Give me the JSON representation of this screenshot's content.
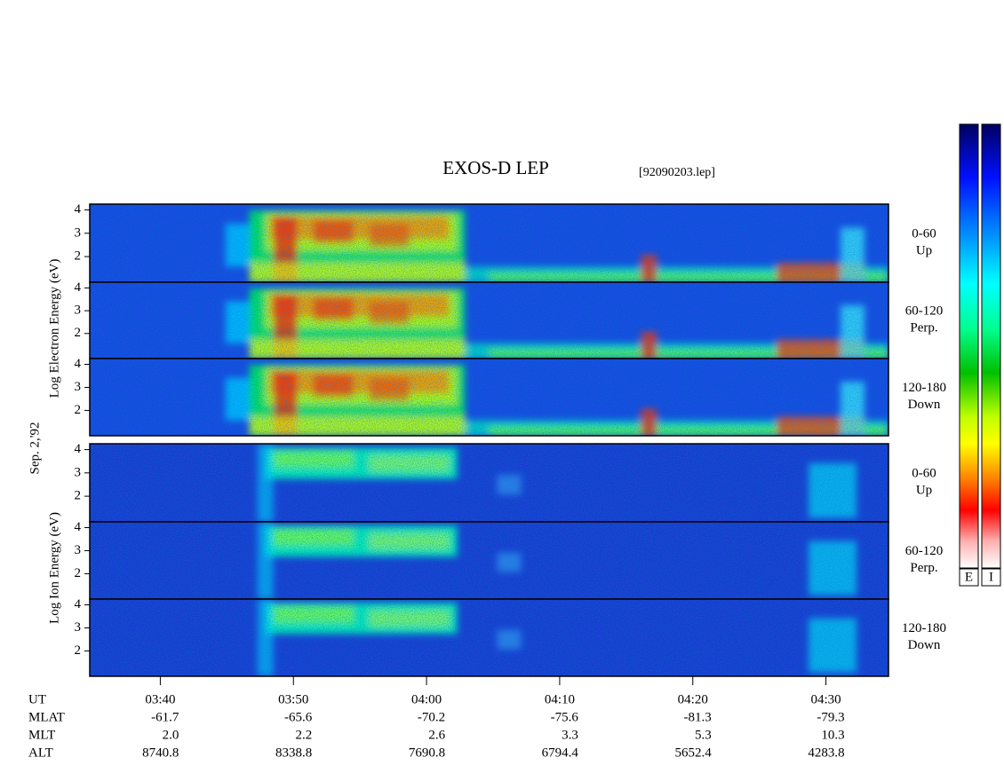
{
  "chart_data": {
    "type": "spectrogram",
    "title": "EXOS-D LEP",
    "file": "[92090203.lep]",
    "date": "Sep. 2,'92",
    "ylabels": [
      "Log Electron Energy (eV)",
      "Log Ion Energy (eV)"
    ],
    "xlim": [
      214.7,
      274.7
    ],
    "xticks": [
      {
        "value": 220,
        "label": "03:40"
      },
      {
        "value": 230,
        "label": "03:50"
      },
      {
        "value": 240,
        "label": "04:00"
      },
      {
        "value": 250,
        "label": "04:10"
      },
      {
        "value": 260,
        "label": "04:20"
      },
      {
        "value": 270,
        "label": "04:30"
      }
    ],
    "panels": [
      {
        "ylim": [
          0.9,
          4.25
        ],
        "yticks": [
          2,
          3,
          4
        ],
        "pitch_angle": "0-60",
        "direction": "Up"
      },
      {
        "ylim": [
          0.9,
          4.25
        ],
        "yticks": [
          2,
          3,
          4
        ],
        "pitch_angle": "60-120",
        "direction": "Perp."
      },
      {
        "ylim": [
          0.9,
          4.25
        ],
        "yticks": [
          2,
          3,
          4
        ],
        "pitch_angle": "120-180",
        "direction": "Down"
      },
      {
        "ylim": [
          0.9,
          4.25
        ],
        "yticks": [
          2,
          3,
          4
        ],
        "pitch_angle": "0-60",
        "direction": "Up"
      },
      {
        "ylim": [
          0.9,
          4.25
        ],
        "yticks": [
          2,
          3,
          4
        ],
        "pitch_angle": "60-120",
        "direction": "Perp."
      },
      {
        "ylim": [
          0.9,
          4.25
        ],
        "yticks": [
          2,
          3,
          4
        ],
        "pitch_angle": "120-180",
        "direction": "Down"
      }
    ],
    "ut_label": "UT",
    "ephemeris": [
      {
        "name": "MLAT",
        "values": [
          "-61.7",
          "-65.6",
          "-70.2",
          "-75.6",
          "-81.3",
          "-79.3"
        ]
      },
      {
        "name": "MLT",
        "values": [
          "2.0",
          "2.2",
          "2.6",
          "3.3",
          "5.3",
          "10.3"
        ]
      },
      {
        "name": "ALT",
        "values": [
          "8740.8",
          "8338.8",
          "7690.8",
          "6794.4",
          "5652.4",
          "4283.8"
        ]
      }
    ],
    "colorbar_labels": [
      "E",
      "I"
    ]
  }
}
